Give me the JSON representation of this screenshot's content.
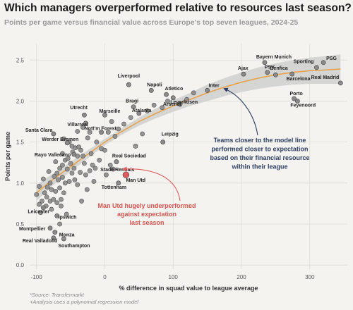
{
  "chart_data": {
    "type": "scatter",
    "title": "Which managers overperformed relative to resources last season?",
    "subtitle": "Points per game versus financial value across Europe's top seven leagues, 2024-25",
    "xlabel": "% difference in squad value to league average",
    "ylabel": "Points per game",
    "xlim": [
      -110,
      355
    ],
    "ylim": [
      -0.05,
      2.7
    ],
    "xticks": [
      "-100",
      "0",
      "100",
      "200",
      "300"
    ],
    "xtick_values": [
      -100,
      0,
      100,
      200,
      300
    ],
    "yticks": [
      "0.0",
      "0.5",
      "1.0",
      "1.5",
      "2.0",
      "2.5"
    ],
    "ytick_values": [
      0.0,
      0.5,
      1.0,
      1.5,
      2.0,
      2.5
    ],
    "grid": true,
    "fit_line": {
      "x": [
        -100,
        -75,
        -50,
        -25,
        0,
        25,
        50,
        75,
        100,
        125,
        150,
        175,
        200,
        225,
        250,
        275,
        300,
        325,
        345
      ],
      "y": [
        0.88,
        1.05,
        1.2,
        1.35,
        1.5,
        1.63,
        1.75,
        1.85,
        1.94,
        2.02,
        2.1,
        2.17,
        2.23,
        2.28,
        2.32,
        2.35,
        2.37,
        2.38,
        2.39
      ],
      "band": [
        0.1,
        0.07,
        0.06,
        0.05,
        0.04,
        0.04,
        0.05,
        0.06,
        0.07,
        0.08,
        0.1,
        0.11,
        0.12,
        0.13,
        0.14,
        0.15,
        0.16,
        0.17,
        0.18
      ]
    },
    "points": [
      {
        "label": "PSG",
        "x": 320,
        "y": 2.47
      },
      {
        "label": "Sporting",
        "x": 310,
        "y": 2.41
      },
      {
        "label": "Real Madrid",
        "x": 345,
        "y": 2.22
      },
      {
        "label": "Bayern Munich",
        "x": 234,
        "y": 2.47
      },
      {
        "label": "Ajax",
        "x": 203,
        "y": 2.33
      },
      {
        "label": "Benfica",
        "x": 250,
        "y": 2.32
      },
      {
        "label": "PSV",
        "x": 238,
        "y": 2.35
      },
      {
        "label": "Barcelona",
        "x": 274,
        "y": 2.33
      },
      {
        "label": "Porto",
        "x": 277,
        "y": 2.03
      },
      {
        "label": "Feyenoord",
        "x": 282,
        "y": 2.0
      },
      {
        "label": "Inter",
        "x": 150,
        "y": 2.13
      },
      {
        "label": "Liverpool",
        "x": 35,
        "y": 2.2
      },
      {
        "label": "Napoli",
        "x": 68,
        "y": 2.13
      },
      {
        "label": "Atletico",
        "x": 90,
        "y": 2.08
      },
      {
        "label": "Arsenal",
        "x": 110,
        "y": 1.96
      },
      {
        "label": "Leverkusen",
        "x": 100,
        "y": 2.04
      },
      {
        "label": "Bragi",
        "x": 42,
        "y": 1.93
      },
      {
        "label": "Atalanta",
        "x": 50,
        "y": 1.85
      },
      {
        "label": "Marseille",
        "x": 0,
        "y": 1.83
      },
      {
        "label": "Utrecht",
        "x": -30,
        "y": 1.83
      },
      {
        "label": "Villarreal",
        "x": -28,
        "y": 1.73
      },
      {
        "label": "Nott'm Forest",
        "x": -5,
        "y": 1.62
      },
      {
        "label": "Leipzig",
        "x": 85,
        "y": 1.5
      },
      {
        "label": "Santa Clara",
        "x": -75,
        "y": 1.6
      },
      {
        "label": "Werder Bremen",
        "x": -55,
        "y": 1.49
      },
      {
        "label": "Rayo Vallecano",
        "x": -45,
        "y": 1.35
      },
      {
        "label": "Real Sociedad",
        "x": 17,
        "y": 1.26
      },
      {
        "label": "Stade Rennais",
        "x": 12,
        "y": 1.17
      },
      {
        "label": "Man Utd",
        "x": 31,
        "y": 1.1
      },
      {
        "label": "Tottenham",
        "x": 20,
        "y": 1.0
      },
      {
        "label": "Leicester",
        "x": -90,
        "y": 0.7
      },
      {
        "label": "Ipswich",
        "x": -70,
        "y": 0.6
      },
      {
        "label": "Montpellier",
        "x": -80,
        "y": 0.45
      },
      {
        "label": "Monza",
        "x": -73,
        "y": 0.4
      },
      {
        "label": "Real Valladolid",
        "x": -75,
        "y": 0.33
      },
      {
        "label": "Southampton",
        "x": -60,
        "y": 0.32
      }
    ],
    "other_points": [
      {
        "x": -60,
        "y": 1.54
      },
      {
        "x": -52,
        "y": 1.5
      },
      {
        "x": -48,
        "y": 1.45
      },
      {
        "x": -43,
        "y": 1.43
      },
      {
        "x": -38,
        "y": 1.44
      },
      {
        "x": -35,
        "y": 1.4
      },
      {
        "x": -47,
        "y": 1.38
      },
      {
        "x": -40,
        "y": 1.33
      },
      {
        "x": -32,
        "y": 1.33
      },
      {
        "x": -20,
        "y": 1.36
      },
      {
        "x": -58,
        "y": 1.28
      },
      {
        "x": -54,
        "y": 1.3
      },
      {
        "x": -50,
        "y": 1.24
      },
      {
        "x": -62,
        "y": 1.22
      },
      {
        "x": -66,
        "y": 1.18
      },
      {
        "x": -55,
        "y": 1.17
      },
      {
        "x": -45,
        "y": 1.18
      },
      {
        "x": -48,
        "y": 1.12
      },
      {
        "x": -36,
        "y": 1.13
      },
      {
        "x": -28,
        "y": 1.1
      },
      {
        "x": -22,
        "y": 1.15
      },
      {
        "x": -14,
        "y": 1.18
      },
      {
        "x": -70,
        "y": 1.12
      },
      {
        "x": -74,
        "y": 1.08
      },
      {
        "x": -68,
        "y": 1.04
      },
      {
        "x": -62,
        "y": 1.07
      },
      {
        "x": -58,
        "y": 1.0
      },
      {
        "x": -52,
        "y": 1.02
      },
      {
        "x": -44,
        "y": 1.04
      },
      {
        "x": -40,
        "y": 0.98
      },
      {
        "x": -80,
        "y": 1.0
      },
      {
        "x": -84,
        "y": 0.95
      },
      {
        "x": -78,
        "y": 0.92
      },
      {
        "x": -72,
        "y": 0.9
      },
      {
        "x": -66,
        "y": 0.94
      },
      {
        "x": -60,
        "y": 0.88
      },
      {
        "x": -88,
        "y": 0.88
      },
      {
        "x": -85,
        "y": 0.83
      },
      {
        "x": -80,
        "y": 0.78
      },
      {
        "x": -75,
        "y": 0.8
      },
      {
        "x": -70,
        "y": 0.76
      },
      {
        "x": -64,
        "y": 0.8
      },
      {
        "x": -92,
        "y": 0.78
      },
      {
        "x": -96,
        "y": 0.74
      },
      {
        "x": -86,
        "y": 0.72
      },
      {
        "x": -78,
        "y": 0.68
      },
      {
        "x": -94,
        "y": 0.64
      },
      {
        "x": -64,
        "y": 0.72
      },
      {
        "x": -30,
        "y": 1.24
      },
      {
        "x": -18,
        "y": 1.22
      },
      {
        "x": -8,
        "y": 1.28
      },
      {
        "x": -25,
        "y": 1.55
      },
      {
        "x": -12,
        "y": 1.5
      },
      {
        "x": -5,
        "y": 1.42
      },
      {
        "x": 0,
        "y": 1.4
      },
      {
        "x": -40,
        "y": 1.63
      },
      {
        "x": -32,
        "y": 1.68
      },
      {
        "x": -22,
        "y": 1.62
      },
      {
        "x": 10,
        "y": 1.75
      },
      {
        "x": 20,
        "y": 1.66
      },
      {
        "x": 28,
        "y": 1.72
      },
      {
        "x": 38,
        "y": 1.8
      },
      {
        "x": 62,
        "y": 1.88
      },
      {
        "x": 72,
        "y": 1.95
      },
      {
        "x": 84,
        "y": 1.92
      },
      {
        "x": 92,
        "y": 2.0
      },
      {
        "x": 120,
        "y": 2.02
      },
      {
        "x": 130,
        "y": 2.1
      },
      {
        "x": 15,
        "y": 1.57
      },
      {
        "x": 5,
        "y": 1.62
      },
      {
        "x": -62,
        "y": 1.36
      },
      {
        "x": -72,
        "y": 1.26
      },
      {
        "x": -82,
        "y": 1.14
      },
      {
        "x": -90,
        "y": 1.05
      },
      {
        "x": -96,
        "y": 0.96
      },
      {
        "x": -100,
        "y": 0.86
      },
      {
        "x": -56,
        "y": 0.62
      },
      {
        "x": -66,
        "y": 0.5
      },
      {
        "x": -34,
        "y": 0.78
      },
      {
        "x": -26,
        "y": 0.92
      },
      {
        "x": -16,
        "y": 1.02
      },
      {
        "x": 2,
        "y": 1.1
      },
      {
        "x": 8,
        "y": 1.22
      },
      {
        "x": 45,
        "y": 1.45
      },
      {
        "x": 55,
        "y": 1.6
      }
    ],
    "highlight": {
      "label": "Man Utd",
      "color": "#e05c5c"
    },
    "annotations": [
      {
        "name": "man-utd-note",
        "lines": [
          "Man Utd hugely underperformed",
          "against expectation",
          "last season"
        ],
        "color": "#d9534f"
      },
      {
        "name": "model-line-note",
        "lines": [
          "Teams closer to the model line",
          "performed closer to expectation",
          "based on their financial resource",
          "within their league"
        ],
        "color": "#2c3e63"
      }
    ]
  },
  "footer": {
    "source": "*Source: Transfermarkt",
    "note": "+Analysis uses a polynomial regression model"
  },
  "colors": {
    "point": "#8a8a8a",
    "point_stroke": "#444444",
    "fit": "#e8a24a",
    "band": "#cfcfcf",
    "accent": "#e05c5c",
    "navy": "#2c3e63"
  }
}
